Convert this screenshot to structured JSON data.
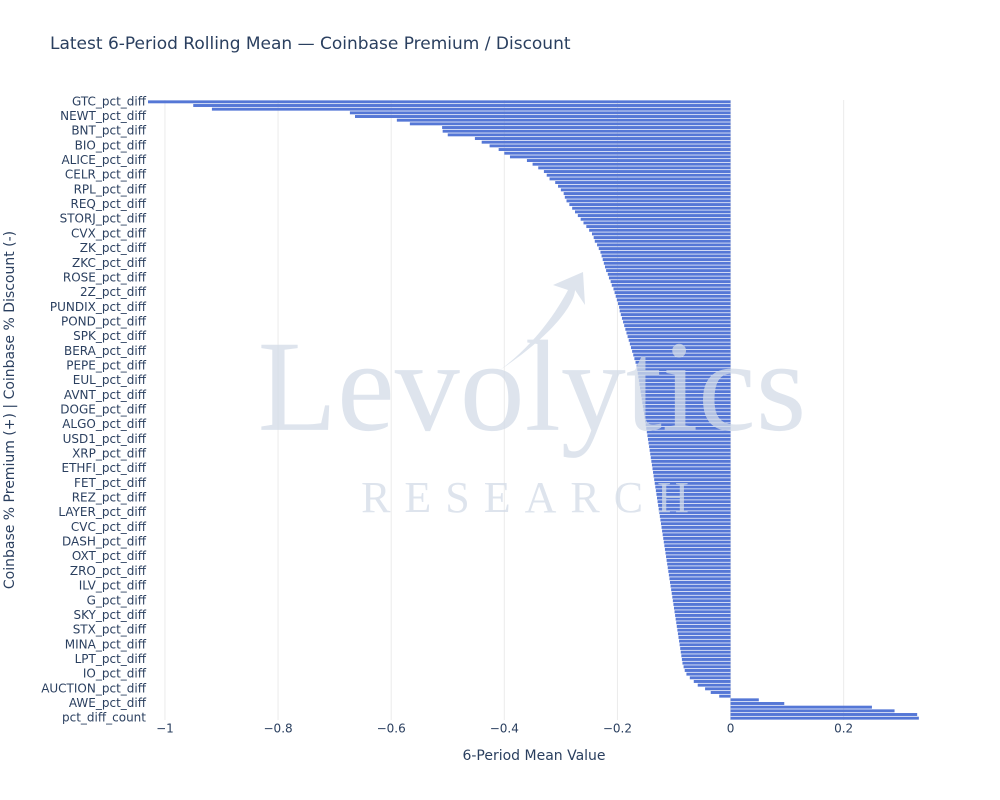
{
  "chart_data": {
    "type": "bar",
    "orientation": "horizontal",
    "title": "Latest 6-Period Rolling Mean — Coinbase Premium / Discount",
    "x_label": "6-Period Mean Value",
    "y_label": "Coinbase % Premium (+) | Coinbase % Discount (-)",
    "watermark": [
      "Levolytics",
      "RESEARCH"
    ],
    "color": "#5577d6",
    "grid": true,
    "xlim": [
      -1.03,
      0.335
    ],
    "xticks": [
      {
        "value": -1,
        "label": "−1"
      },
      {
        "value": -0.8,
        "label": "−0.8"
      },
      {
        "value": -0.6,
        "label": "−0.6"
      },
      {
        "value": -0.4,
        "label": "−0.4"
      },
      {
        "value": -0.2,
        "label": "−0.2"
      },
      0,
      0.2
    ],
    "categories": [
      "GTC_pct_diff",
      null,
      null,
      null,
      "NEWT_pct_diff",
      null,
      null,
      null,
      "BNT_pct_diff",
      null,
      null,
      null,
      "BIO_pct_diff",
      null,
      null,
      null,
      "ALICE_pct_diff",
      null,
      null,
      null,
      "CELR_pct_diff",
      null,
      null,
      null,
      "RPL_pct_diff",
      null,
      null,
      null,
      "REQ_pct_diff",
      null,
      null,
      null,
      "STORJ_pct_diff",
      null,
      null,
      null,
      "CVX_pct_diff",
      null,
      null,
      null,
      "ZK_pct_diff",
      null,
      null,
      null,
      "ZKC_pct_diff",
      null,
      null,
      null,
      "ROSE_pct_diff",
      null,
      null,
      null,
      "2Z_pct_diff",
      null,
      null,
      null,
      "PUNDIX_pct_diff",
      null,
      null,
      null,
      "POND_pct_diff",
      null,
      null,
      null,
      "SPK_pct_diff",
      null,
      null,
      null,
      "BERA_pct_diff",
      null,
      null,
      null,
      "PEPE_pct_diff",
      null,
      null,
      null,
      "EUL_pct_diff",
      null,
      null,
      null,
      "AVNT_pct_diff",
      null,
      null,
      null,
      "DOGE_pct_diff",
      null,
      null,
      null,
      "ALGO_pct_diff",
      null,
      null,
      null,
      "USD1_pct_diff",
      null,
      null,
      null,
      "XRP_pct_diff",
      null,
      null,
      null,
      "ETHFI_pct_diff",
      null,
      null,
      null,
      "FET_pct_diff",
      null,
      null,
      null,
      "REZ_pct_diff",
      null,
      null,
      null,
      "LAYER_pct_diff",
      null,
      null,
      null,
      "CVC_pct_diff",
      null,
      null,
      null,
      "DASH_pct_diff",
      null,
      null,
      null,
      "OXT_pct_diff",
      null,
      null,
      null,
      "ZRO_pct_diff",
      null,
      null,
      null,
      "ILV_pct_diff",
      null,
      null,
      null,
      "G_pct_diff",
      null,
      null,
      null,
      "SKY_pct_diff",
      null,
      null,
      null,
      "STX_pct_diff",
      null,
      null,
      null,
      "MINA_pct_diff",
      null,
      null,
      null,
      "LPT_pct_diff",
      null,
      null,
      null,
      "IO_pct_diff",
      null,
      null,
      null,
      "AUCTION_pct_diff",
      null,
      null,
      null,
      "AWE_pct_diff",
      null,
      null,
      null,
      "pct_diff_count"
    ],
    "values": [
      -1.03,
      -0.95,
      -0.917,
      -0.673,
      -0.664,
      -0.59,
      -0.567,
      -0.51,
      -0.509,
      -0.5,
      -0.452,
      -0.44,
      -0.426,
      -0.41,
      -0.4,
      -0.39,
      -0.36,
      -0.35,
      -0.34,
      -0.33,
      -0.325,
      -0.32,
      -0.31,
      -0.305,
      -0.3,
      -0.295,
      -0.293,
      -0.29,
      -0.285,
      -0.28,
      -0.275,
      -0.27,
      -0.265,
      -0.26,
      -0.255,
      -0.25,
      -0.245,
      -0.242,
      -0.24,
      -0.236,
      -0.233,
      -0.23,
      -0.228,
      -0.226,
      -0.224,
      -0.222,
      -0.22,
      -0.217,
      -0.215,
      -0.212,
      -0.21,
      -0.207,
      -0.205,
      -0.203,
      -0.201,
      -0.199,
      -0.197,
      -0.196,
      -0.194,
      -0.192,
      -0.19,
      -0.188,
      -0.186,
      -0.184,
      -0.182,
      -0.18,
      -0.178,
      -0.176,
      -0.174,
      -0.172,
      -0.17,
      -0.168,
      -0.166,
      -0.165,
      -0.164,
      -0.163,
      -0.162,
      -0.161,
      -0.16,
      -0.159,
      -0.158,
      -0.157,
      -0.156,
      -0.155,
      -0.154,
      -0.153,
      -0.152,
      -0.151,
      -0.15,
      -0.149,
      -0.148,
      -0.147,
      -0.146,
      -0.145,
      -0.144,
      -0.143,
      -0.142,
      -0.141,
      -0.14,
      -0.139,
      -0.138,
      -0.137,
      -0.136,
      -0.135,
      -0.134,
      -0.133,
      -0.132,
      -0.131,
      -0.13,
      -0.129,
      -0.128,
      -0.127,
      -0.126,
      -0.125,
      -0.124,
      -0.123,
      -0.122,
      -0.121,
      -0.12,
      -0.119,
      -0.118,
      -0.117,
      -0.116,
      -0.115,
      -0.114,
      -0.113,
      -0.112,
      -0.111,
      -0.11,
      -0.109,
      -0.108,
      -0.107,
      -0.106,
      -0.105,
      -0.104,
      -0.103,
      -0.102,
      -0.101,
      -0.1,
      -0.099,
      -0.098,
      -0.097,
      -0.096,
      -0.095,
      -0.094,
      -0.093,
      -0.092,
      -0.091,
      -0.09,
      -0.089,
      -0.088,
      -0.087,
      -0.086,
      -0.085,
      -0.083,
      -0.081,
      -0.078,
      -0.072,
      -0.065,
      -0.058,
      -0.045,
      -0.035,
      -0.02,
      0.05,
      0.095,
      0.25,
      0.29,
      0.33,
      0.333
    ]
  }
}
